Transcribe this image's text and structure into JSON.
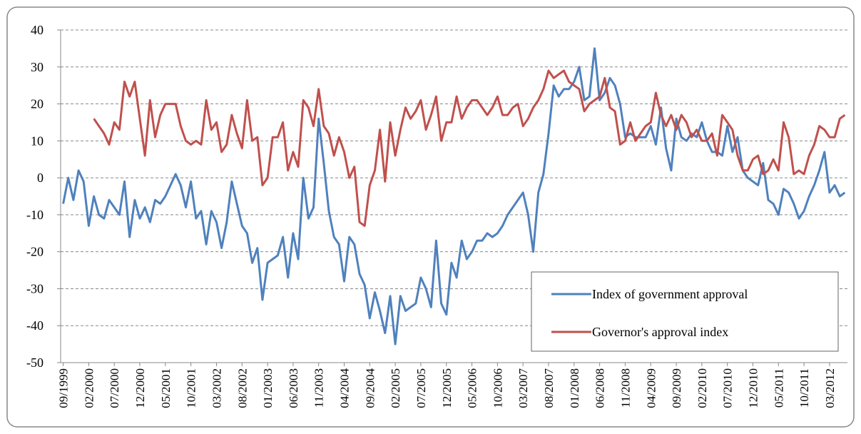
{
  "chart_data": {
    "type": "line",
    "categories": [
      "09/1999",
      null,
      null,
      null,
      null,
      "02/2000",
      null,
      null,
      null,
      null,
      "07/2000",
      null,
      null,
      null,
      null,
      "12/2000",
      null,
      null,
      null,
      null,
      "05/2001",
      null,
      null,
      null,
      null,
      "10/2001",
      null,
      null,
      null,
      null,
      "03/2002",
      null,
      null,
      null,
      null,
      "08/2002",
      null,
      null,
      null,
      null,
      "01/2003",
      null,
      null,
      null,
      null,
      "06/2003",
      null,
      null,
      null,
      null,
      "11/2003",
      null,
      null,
      null,
      null,
      "04/2004",
      null,
      null,
      null,
      null,
      "09/2004",
      null,
      null,
      null,
      null,
      "02/2005",
      null,
      null,
      null,
      null,
      "07/2005",
      null,
      null,
      null,
      null,
      "12/2005",
      null,
      null,
      null,
      null,
      "05/2006",
      null,
      null,
      null,
      null,
      "10/2006",
      null,
      null,
      null,
      null,
      "03/2007",
      null,
      null,
      null,
      null,
      "08/2007",
      null,
      null,
      null,
      null,
      "01/2008",
      null,
      null,
      null,
      null,
      "06/2008",
      null,
      null,
      null,
      null,
      "11/2008",
      null,
      null,
      null,
      null,
      "04/2009",
      null,
      null,
      null,
      null,
      "09/2009",
      null,
      null,
      null,
      null,
      "02/2010",
      null,
      null,
      null,
      null,
      "07/2010",
      null,
      null,
      null,
      null,
      "12/2010",
      null,
      null,
      null,
      null,
      "05/2011",
      null,
      null,
      null,
      null,
      "10/2011",
      null,
      null,
      null,
      null,
      "03/2012",
      null,
      null,
      null
    ],
    "series": [
      {
        "name": "Index of government approval",
        "color": "#4f81bd",
        "values": [
          -7,
          0,
          -6,
          2,
          -1,
          -13,
          -5,
          -10,
          -11,
          -6,
          -8,
          -10,
          -1,
          -16,
          -6,
          -11,
          -8,
          -12,
          -6,
          -7,
          -5,
          -2,
          1,
          -2,
          -8,
          -1,
          -11,
          -9,
          -18,
          -9,
          -12,
          -19,
          -12,
          -1,
          -7,
          -13,
          -15,
          -23,
          -19,
          -33,
          -23,
          -22,
          -21,
          -16,
          -27,
          -15,
          -22,
          0,
          -11,
          -8,
          16,
          4,
          -9,
          -16,
          -18,
          -28,
          -16,
          -18,
          -26,
          -29,
          -38,
          -31,
          -36,
          -42,
          -32,
          -45,
          -32,
          -36,
          -35,
          -34,
          -27,
          -30,
          -35,
          -17,
          -34,
          -37,
          -23,
          -27,
          -17,
          -22,
          -20,
          -17,
          -17,
          -15,
          -16,
          -15,
          -13,
          -10,
          -8,
          -6,
          -4,
          -10,
          -20,
          -4,
          1,
          12,
          25,
          22,
          24,
          24,
          26,
          30,
          21,
          22,
          35,
          21,
          23,
          27,
          25,
          20,
          11,
          12,
          11,
          11,
          11,
          14,
          9,
          19,
          8,
          2,
          16,
          11,
          10,
          12,
          11,
          15,
          10,
          7,
          7,
          6,
          14,
          7,
          11,
          2,
          0,
          -1,
          -2,
          4,
          -6,
          -7,
          -10,
          -3,
          -4,
          -7,
          -11,
          -9,
          -5,
          -2,
          2,
          7,
          -4,
          -2,
          -5,
          -4
        ]
      },
      {
        "name": "Governor's approval index",
        "color": "#c0504d",
        "values": [
          null,
          null,
          null,
          null,
          null,
          null,
          16,
          14,
          12,
          9,
          15,
          13,
          26,
          22,
          26,
          16,
          6,
          21,
          11,
          17,
          20,
          20,
          20,
          14,
          10,
          9,
          10,
          9,
          21,
          13,
          15,
          7,
          9,
          17,
          12,
          8,
          21,
          10,
          11,
          -2,
          0,
          11,
          11,
          15,
          2,
          7,
          3,
          21,
          19,
          14,
          24,
          14,
          12,
          6,
          11,
          7,
          0,
          3,
          -12,
          -13,
          -2,
          2,
          13,
          -1,
          15,
          6,
          13,
          19,
          16,
          18,
          21,
          13,
          17,
          22,
          10,
          15,
          15,
          22,
          16,
          19,
          21,
          21,
          19,
          17,
          19,
          22,
          17,
          17,
          19,
          20,
          14,
          16,
          19,
          21,
          24,
          29,
          27,
          28,
          29,
          26,
          25,
          24,
          18,
          20,
          21,
          22,
          27,
          19,
          18,
          9,
          10,
          15,
          10,
          12,
          14,
          15,
          23,
          17,
          14,
          17,
          13,
          17,
          15,
          11,
          13,
          10,
          10,
          12,
          6,
          17,
          15,
          13,
          6,
          2,
          2,
          5,
          6,
          1,
          2,
          5,
          2,
          15,
          11,
          1,
          2,
          1,
          6,
          9,
          14,
          13,
          11,
          11,
          16,
          17
        ]
      }
    ],
    "ylim": [
      -50,
      40
    ],
    "yticks": [
      -50,
      -40,
      -30,
      -20,
      -10,
      0,
      10,
      20,
      30,
      40
    ],
    "grid": true,
    "legend": "lower right"
  }
}
